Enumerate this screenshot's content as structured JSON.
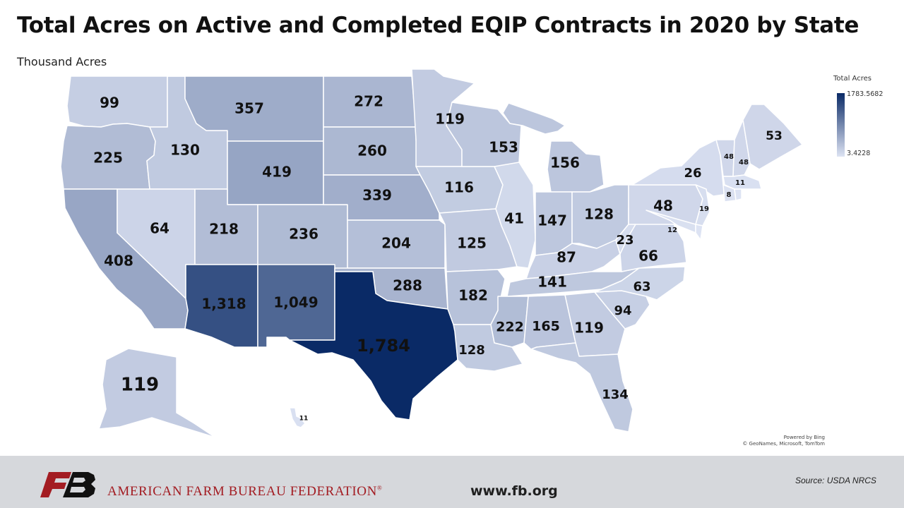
{
  "title": "Total Acres on Active and Completed EQIP Contracts in 2020 by State",
  "subtitle": "Thousand Acres",
  "legend": {
    "title": "Total Acres",
    "max": "1783.5682",
    "min": "3.4228",
    "max_value": 1783.5682,
    "min_value": 3.4228
  },
  "attribution": {
    "line1": "Powered by Bing",
    "line2": "© GeoNames, Microsoft, TomTom"
  },
  "footer": {
    "org": "AMERICAN FARM BUREAU FEDERATION",
    "reg": "®",
    "website": "www.fb.org",
    "source": "Source: USDA NRCS"
  },
  "colors": {
    "low": "#dde3f3",
    "high": "#0a2a66",
    "dark_label": "#111111",
    "light_label": "#ffffff",
    "brand_red": "#a31c22"
  },
  "chart_data": {
    "type": "choropleth",
    "units": "thousand acres",
    "states": [
      {
        "state": "WA",
        "value": 99,
        "label": "99"
      },
      {
        "state": "OR",
        "value": 225,
        "label": "225"
      },
      {
        "state": "CA",
        "value": 408,
        "label": "408"
      },
      {
        "state": "ID",
        "value": 130,
        "label": "130"
      },
      {
        "state": "NV",
        "value": 64,
        "label": "64"
      },
      {
        "state": "MT",
        "value": 357,
        "label": "357"
      },
      {
        "state": "WY",
        "value": 419,
        "label": "419"
      },
      {
        "state": "UT",
        "value": 218,
        "label": "218"
      },
      {
        "state": "CO",
        "value": 236,
        "label": "236"
      },
      {
        "state": "AZ",
        "value": 1318,
        "label": "1,318"
      },
      {
        "state": "NM",
        "value": 1049,
        "label": "1,049"
      },
      {
        "state": "ND",
        "value": 272,
        "label": "272"
      },
      {
        "state": "SD",
        "value": 260,
        "label": "260"
      },
      {
        "state": "NE",
        "value": 339,
        "label": "339"
      },
      {
        "state": "KS",
        "value": 204,
        "label": "204"
      },
      {
        "state": "OK",
        "value": 288,
        "label": "288"
      },
      {
        "state": "TX",
        "value": 1784,
        "label": "1,784"
      },
      {
        "state": "MN",
        "value": 119,
        "label": "119"
      },
      {
        "state": "IA",
        "value": 116,
        "label": "116"
      },
      {
        "state": "MO",
        "value": 125,
        "label": "125"
      },
      {
        "state": "AR",
        "value": 182,
        "label": "182"
      },
      {
        "state": "LA",
        "value": 128,
        "label": "128"
      },
      {
        "state": "WI",
        "value": 153,
        "label": "153"
      },
      {
        "state": "IL",
        "value": 41,
        "label": "41"
      },
      {
        "state": "MI",
        "value": 156,
        "label": "156"
      },
      {
        "state": "IN",
        "value": 147,
        "label": "147"
      },
      {
        "state": "OH",
        "value": 128,
        "label": "128"
      },
      {
        "state": "KY",
        "value": 87,
        "label": "87"
      },
      {
        "state": "TN",
        "value": 141,
        "label": "141"
      },
      {
        "state": "MS",
        "value": 222,
        "label": "222"
      },
      {
        "state": "AL",
        "value": 165,
        "label": "165"
      },
      {
        "state": "GA",
        "value": 119,
        "label": "119"
      },
      {
        "state": "FL",
        "value": 134,
        "label": "134"
      },
      {
        "state": "SC",
        "value": 94,
        "label": "94"
      },
      {
        "state": "NC",
        "value": 63,
        "label": "63"
      },
      {
        "state": "VA",
        "value": 66,
        "label": "66"
      },
      {
        "state": "WV",
        "value": 23,
        "label": "23"
      },
      {
        "state": "PA",
        "value": 48,
        "label": "48"
      },
      {
        "state": "NY",
        "value": 26,
        "label": "26"
      },
      {
        "state": "NJ",
        "value": 19,
        "label": "19"
      },
      {
        "state": "MD",
        "value": 12,
        "label": "12"
      },
      {
        "state": "VT",
        "value": 48,
        "label": "48"
      },
      {
        "state": "NH",
        "value": 48,
        "label": "48"
      },
      {
        "state": "MA",
        "value": 11,
        "label": "11"
      },
      {
        "state": "CT",
        "value": 8,
        "label": "8"
      },
      {
        "state": "ME",
        "value": 53,
        "label": "53"
      },
      {
        "state": "AK",
        "value": 119,
        "label": "119"
      },
      {
        "state": "HI",
        "value": 11,
        "label": "11"
      }
    ]
  }
}
